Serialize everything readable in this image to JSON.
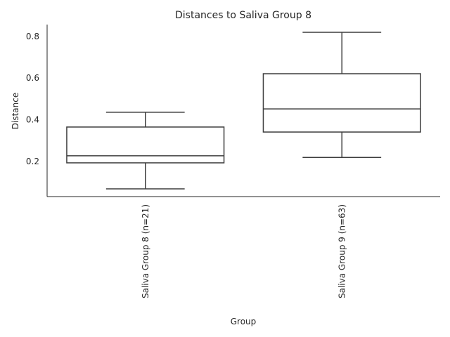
{
  "chart_data": {
    "type": "box",
    "title": "Distances to Saliva Group 8",
    "x_label": "Group",
    "y_label": "Distance",
    "categories": [
      "Saliva Group 8 (n=21)",
      "Saliva Group 9 (n=63)"
    ],
    "min": [
      0.068,
      0.219
    ],
    "q1": [
      0.193,
      0.341
    ],
    "median": [
      0.227,
      0.452
    ],
    "q3": [
      0.365,
      0.621
    ],
    "max": [
      0.436,
      0.82
    ],
    "color": "#3d3d3d",
    "box_fill": "#ffffff",
    "ylim": [
      0.031,
      0.857
    ],
    "yticks": [
      0.2,
      0.4,
      0.6,
      0.8
    ]
  }
}
